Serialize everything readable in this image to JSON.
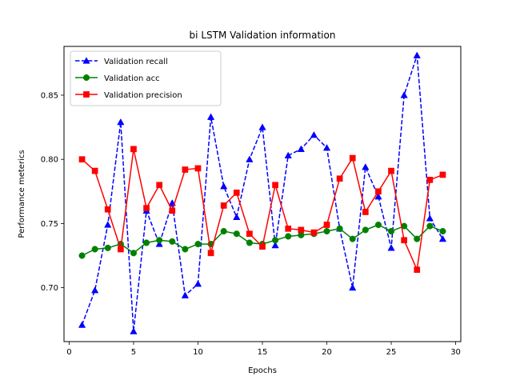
{
  "chart_data": {
    "type": "line",
    "title": "bi LSTM Validation information",
    "xlabel": "Epochs",
    "ylabel": "Performance meterics",
    "xlim": [
      -0.4,
      30.4
    ],
    "ylim": [
      0.658,
      0.888
    ],
    "xticks": [
      0,
      5,
      10,
      15,
      20,
      25,
      30
    ],
    "yticks": [
      0.7,
      0.75,
      0.8,
      0.85
    ],
    "ytick_labels": [
      "0.70",
      "0.75",
      "0.80",
      "0.85"
    ],
    "grid": false,
    "legend_position": "upper-left",
    "x": [
      1,
      2,
      3,
      4,
      5,
      6,
      7,
      8,
      9,
      10,
      11,
      12,
      13,
      14,
      15,
      16,
      17,
      18,
      19,
      20,
      21,
      22,
      23,
      24,
      25,
      26,
      27,
      28,
      29
    ],
    "series": [
      {
        "name": "Validation recall",
        "color": "#0000ff",
        "linestyle": "dashed",
        "marker": "triangle",
        "values": [
          0.671,
          0.698,
          0.749,
          0.829,
          0.666,
          0.76,
          0.734,
          0.766,
          0.694,
          0.703,
          0.833,
          0.779,
          0.755,
          0.8,
          0.825,
          0.733,
          0.803,
          0.808,
          0.819,
          0.809,
          0.746,
          0.7,
          0.794,
          0.771,
          0.731,
          0.85,
          0.881,
          0.754,
          0.738
        ]
      },
      {
        "name": "Validation acc",
        "color": "#008000",
        "linestyle": "solid",
        "marker": "circle",
        "values": [
          0.725,
          0.73,
          0.731,
          0.734,
          0.727,
          0.735,
          0.737,
          0.736,
          0.73,
          0.734,
          0.734,
          0.744,
          0.742,
          0.735,
          0.734,
          0.737,
          0.74,
          0.741,
          0.742,
          0.744,
          0.746,
          0.738,
          0.745,
          0.749,
          0.744,
          0.748,
          0.738,
          0.748,
          0.744
        ]
      },
      {
        "name": "Validation precision",
        "color": "#ff0000",
        "linestyle": "solid",
        "marker": "square",
        "values": [
          0.8,
          0.791,
          0.761,
          0.73,
          0.808,
          0.762,
          0.78,
          0.76,
          0.792,
          0.793,
          0.727,
          0.764,
          0.774,
          0.742,
          0.732,
          0.78,
          0.746,
          0.745,
          0.743,
          0.749,
          0.785,
          0.801,
          0.759,
          0.775,
          0.791,
          0.737,
          0.714,
          0.784,
          0.788
        ]
      }
    ]
  }
}
